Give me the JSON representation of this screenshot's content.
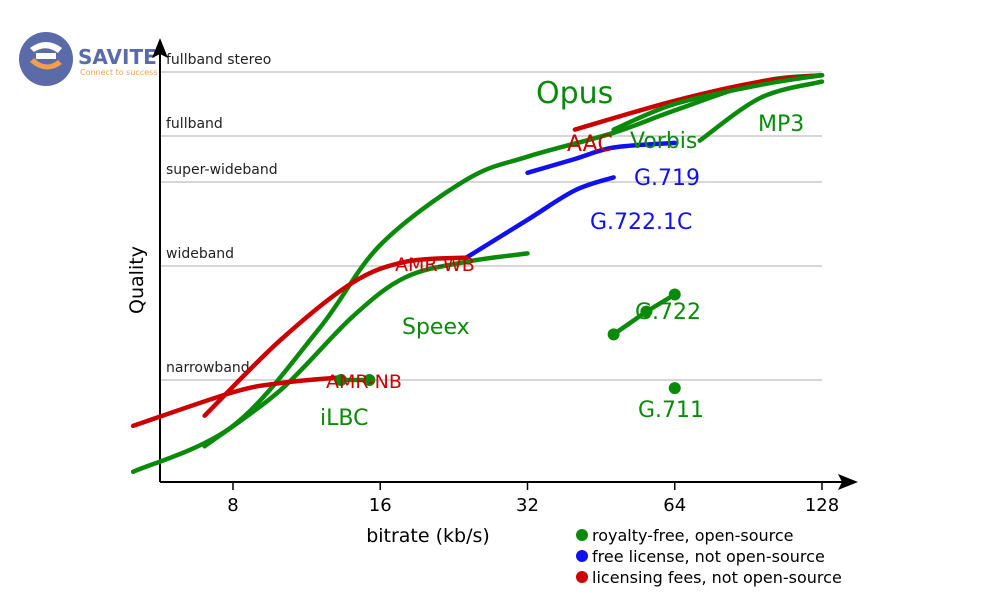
{
  "logo": {
    "name": "SAVITE",
    "tagline": "Connect to success",
    "color_dark": "#5b6aa8",
    "color_accent": "#f0a04b"
  },
  "chart_data": {
    "type": "line",
    "xlabel": "bitrate (kb/s)",
    "ylabel": "Quality",
    "x_scale": "log2",
    "x_ticks": [
      8,
      16,
      32,
      64,
      128
    ],
    "x_tick_labels": [
      "8",
      "16",
      "32",
      "64",
      "128"
    ],
    "xlim": [
      5,
      128
    ],
    "y_levels": [
      {
        "label": "narrowband",
        "value": 1
      },
      {
        "label": "wideband",
        "value": 2
      },
      {
        "label": "super-wideband",
        "value": 3
      },
      {
        "label": "fullband",
        "value": 4
      },
      {
        "label": "fullband stereo",
        "value": 5
      }
    ],
    "ylim": [
      0,
      5.2
    ],
    "grid": true,
    "categories": {
      "green": {
        "label": "royalty-free, open-source",
        "color": "#0a8a0a"
      },
      "blue": {
        "label": "free license, not open-source",
        "color": "#1010f0"
      },
      "red": {
        "label": "licensing fees, not open-source",
        "color": "#cc0000"
      }
    },
    "legend_position": "bottom-right",
    "series": [
      {
        "name": "Opus",
        "category": "green",
        "kind": "line",
        "points": [
          [
            5,
            0.1
          ],
          [
            8,
            0.55
          ],
          [
            12,
            1.45
          ],
          [
            16,
            2.25
          ],
          [
            24,
            3.05
          ],
          [
            32,
            3.55
          ],
          [
            48,
            4.05
          ],
          [
            64,
            4.4
          ],
          [
            96,
            4.85
          ],
          [
            128,
            4.95
          ]
        ]
      },
      {
        "name": "AAC",
        "category": "red",
        "kind": "line",
        "points": [
          [
            40,
            4.1
          ],
          [
            64,
            4.55
          ],
          [
            96,
            4.85
          ],
          [
            128,
            4.95
          ]
        ]
      },
      {
        "name": "Vorbis",
        "category": "green",
        "kind": "line",
        "points": [
          [
            48,
            4.1
          ],
          [
            64,
            4.5
          ],
          [
            96,
            4.8
          ],
          [
            128,
            4.95
          ]
        ]
      },
      {
        "name": "MP3",
        "category": "green",
        "kind": "line",
        "points": [
          [
            72,
            3.9
          ],
          [
            96,
            4.6
          ],
          [
            128,
            4.85
          ]
        ]
      },
      {
        "name": "G.719",
        "category": "blue",
        "kind": "line",
        "points": [
          [
            32,
            3.2
          ],
          [
            40,
            3.5
          ],
          [
            48,
            3.75
          ],
          [
            64,
            3.85
          ]
        ]
      },
      {
        "name": "G.722.1C",
        "category": "blue",
        "kind": "line",
        "points": [
          [
            24,
            2.1
          ],
          [
            32,
            2.55
          ],
          [
            40,
            2.9
          ],
          [
            48,
            3.1
          ]
        ]
      },
      {
        "name": "AMR-WB",
        "category": "red",
        "kind": "line",
        "points": [
          [
            7,
            0.65
          ],
          [
            10,
            1.35
          ],
          [
            14,
            1.85
          ],
          [
            18,
            2.05
          ],
          [
            24,
            2.1
          ]
        ]
      },
      {
        "name": "Speex",
        "category": "green",
        "kind": "line",
        "points": [
          [
            7,
            0.35
          ],
          [
            10,
            0.9
          ],
          [
            14,
            1.55
          ],
          [
            18,
            1.9
          ],
          [
            24,
            2.05
          ],
          [
            32,
            2.15
          ]
        ]
      },
      {
        "name": "AMR-NB",
        "category": "red",
        "kind": "line",
        "points": [
          [
            5,
            0.55
          ],
          [
            8,
            0.88
          ],
          [
            10,
            0.97
          ],
          [
            13,
            1.02
          ]
        ]
      },
      {
        "name": "iLBC",
        "category": "green",
        "kind": "points",
        "points": [
          [
            13.3,
            1.0
          ],
          [
            15.2,
            1.0
          ]
        ]
      },
      {
        "name": "G.722",
        "category": "green",
        "kind": "points",
        "points": [
          [
            48,
            1.4
          ],
          [
            56,
            1.6
          ],
          [
            64,
            1.75
          ]
        ]
      },
      {
        "name": "G.711",
        "category": "green",
        "kind": "points",
        "points": [
          [
            64,
            0.92
          ]
        ]
      }
    ]
  }
}
